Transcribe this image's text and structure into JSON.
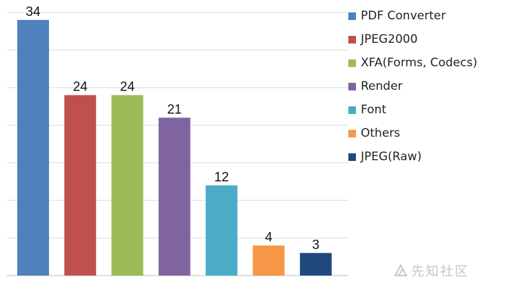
{
  "chart_data": {
    "type": "bar",
    "title": "",
    "xlabel": "",
    "ylabel": "",
    "ylim": [
      0,
      35
    ],
    "grid": true,
    "categories": [
      "PDF Converter",
      "JPEG2000",
      "XFA(Forms, Codecs)",
      "Render",
      "Font",
      "Others",
      "JPEG(Raw)"
    ],
    "values": [
      34,
      24,
      24,
      21,
      12,
      4,
      3
    ],
    "data_labels": [
      "34",
      "24",
      "24",
      "21",
      "12",
      "4",
      "3"
    ],
    "colors": [
      "#4f81bd",
      "#c0504d",
      "#9bbb59",
      "#8064a2",
      "#4bacc6",
      "#f79646",
      "#1f497d"
    ],
    "legend_position": "right"
  },
  "watermark": {
    "text": "先知社区"
  }
}
